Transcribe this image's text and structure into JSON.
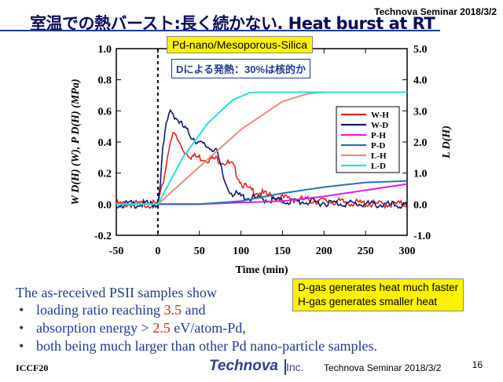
{
  "header": {
    "title": "室温での熱バースト:長く続かない. Heat burst at RT",
    "seminar": "Technova Seminar 2018/3/2"
  },
  "chart_data": {
    "type": "line",
    "xlabel": "Time  (min)",
    "ylabel_left": "W D(H) (W), P D(H) (MPa)",
    "ylabel_right": "L D(H)",
    "xlim": [
      -50,
      300
    ],
    "ylim_left": [
      -0.2,
      1.0
    ],
    "ylim_right": [
      -1.0,
      5.0
    ],
    "x_ticks": [
      "-50",
      "0",
      "50",
      "100",
      "150",
      "200",
      "250",
      "300"
    ],
    "y_left_ticks": [
      "-0.2",
      "0.0",
      "0.2",
      "0.4",
      "0.6",
      "0.8",
      "1.0"
    ],
    "y_right_ticks": [
      "-1.0",
      "0.0",
      "1.0",
      "2.0",
      "3.0",
      "4.0",
      "5.0"
    ],
    "legend_position": "right",
    "vline_x": 0,
    "series": [
      {
        "name": "W-H",
        "axis": "left",
        "color": "#e0241b",
        "x": [
          -50,
          -10,
          0,
          5,
          10,
          15,
          20,
          25,
          30,
          40,
          50,
          60,
          70,
          80,
          90,
          100,
          110,
          120,
          130,
          150,
          170,
          200,
          230,
          260,
          300
        ],
        "y": [
          0.0,
          0.0,
          0.0,
          0.1,
          0.25,
          0.42,
          0.45,
          0.4,
          0.35,
          0.31,
          0.3,
          0.29,
          0.29,
          0.27,
          0.25,
          0.14,
          0.09,
          0.08,
          0.06,
          0.04,
          0.03,
          0.02,
          0.01,
          0.0,
          0.0
        ]
      },
      {
        "name": "W-D",
        "axis": "left",
        "color": "#0a1a6e",
        "x": [
          -50,
          -10,
          0,
          3,
          6,
          10,
          15,
          20,
          30,
          40,
          50,
          60,
          70,
          75,
          80,
          85,
          90,
          100,
          110,
          130,
          150,
          200,
          250,
          300
        ],
        "y": [
          0.0,
          0.0,
          0.0,
          0.15,
          0.35,
          0.5,
          0.61,
          0.57,
          0.5,
          0.44,
          0.39,
          0.37,
          0.35,
          0.25,
          0.15,
          0.1,
          0.07,
          0.05,
          0.04,
          0.03,
          0.02,
          0.01,
          0.0,
          -0.01
        ]
      },
      {
        "name": "P-H",
        "axis": "left",
        "color": "#e61ae6",
        "x": [
          -50,
          0,
          50,
          100,
          150,
          200,
          250,
          300
        ],
        "y": [
          0.0,
          0.0,
          0.0,
          0.01,
          0.02,
          0.05,
          0.09,
          0.13
        ]
      },
      {
        "name": "P-D",
        "axis": "left",
        "color": "#2a6fb8",
        "x": [
          -50,
          0,
          50,
          100,
          150,
          200,
          250,
          300
        ],
        "y": [
          0.0,
          0.0,
          0.0,
          0.02,
          0.07,
          0.11,
          0.14,
          0.15
        ]
      },
      {
        "name": "L-H",
        "axis": "right",
        "color": "#f08a80",
        "x": [
          -50,
          0,
          50,
          100,
          150,
          180,
          200,
          250,
          300
        ],
        "y": [
          0.0,
          0.0,
          1.2,
          2.4,
          3.3,
          3.55,
          3.6,
          3.6,
          3.6
        ]
      },
      {
        "name": "L-D",
        "axis": "right",
        "color": "#25e0e0",
        "x": [
          -50,
          0,
          30,
          60,
          90,
          110,
          120,
          150,
          200,
          250,
          300
        ],
        "y": [
          0.0,
          0.0,
          1.5,
          2.6,
          3.35,
          3.58,
          3.6,
          3.6,
          3.6,
          3.6,
          3.6
        ]
      }
    ]
  },
  "boxes": {
    "sample": "Pd-nano/Mesoporous-Silica",
    "note": "Dによる発熱：30%は核的か",
    "gas_line1": "D-gas generates heat much faster",
    "gas_line2": "H-gas generates smaller heat"
  },
  "body": {
    "lead": "The as-received PSII samples show",
    "b1_pre": "loading ratio reaching ",
    "b1_val": "3.5",
    "b1_post": " and",
    "b2_pre": "absorption energy > ",
    "b2_val": "2.5",
    "b2_post": " eV/atom-Pd,",
    "b3": "both being much larger than other Pd nano-particle samples.",
    "bullet": "•"
  },
  "footer": {
    "left": "ICCF20",
    "logo": "Technova",
    "logo_inc": "Inc.",
    "seminar": "Technova Seminar 2018/3/2",
    "page": "16"
  }
}
